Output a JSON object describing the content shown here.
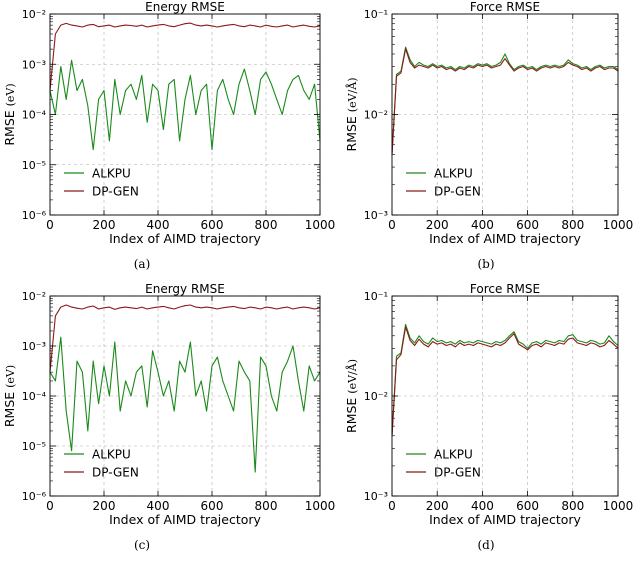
{
  "colors": {
    "alkpu": "#1a8a1a",
    "dpgen": "#8b1a1a",
    "grid": "#b0b0b0",
    "axis": "#000000"
  },
  "chart_data": [
    {
      "type": "line",
      "panel_label": "(a)",
      "title": "Energy RMSE",
      "xlabel": "Index of AIMD trajectory",
      "ylabel": "RMSE",
      "ylabel_unit": "(eV)",
      "log_y": true,
      "xlim": [
        0,
        1000
      ],
      "ylim": [
        1e-06,
        0.01
      ],
      "xticks": [
        0,
        200,
        400,
        600,
        800,
        1000
      ],
      "yticks": [
        {
          "v": 1e-06,
          "label": "10⁻⁶"
        },
        {
          "v": 1e-05,
          "label": "10⁻⁵"
        },
        {
          "v": 0.0001,
          "label": "10⁻⁴"
        },
        {
          "v": 0.001,
          "label": "10⁻³"
        },
        {
          "v": 0.01,
          "label": "10⁻²"
        }
      ],
      "grid": true,
      "legend": "bottom-left",
      "x": [
        0,
        20,
        40,
        60,
        80,
        100,
        120,
        140,
        160,
        180,
        200,
        220,
        240,
        260,
        280,
        300,
        320,
        340,
        360,
        380,
        400,
        420,
        440,
        460,
        480,
        500,
        520,
        540,
        560,
        580,
        600,
        620,
        640,
        660,
        680,
        700,
        720,
        740,
        760,
        780,
        800,
        820,
        840,
        860,
        880,
        900,
        920,
        940,
        960,
        980,
        1000
      ],
      "series": [
        {
          "name": "ALKPU",
          "color_key": "alkpu",
          "values": [
            0.0003,
            0.0001,
            0.0009,
            0.0002,
            0.0012,
            0.0003,
            0.0005,
            0.00015,
            2e-05,
            0.0002,
            0.0003,
            3e-05,
            0.0005,
            0.0001,
            0.0003,
            0.0004,
            0.0002,
            0.0006,
            7e-05,
            0.0004,
            0.0003,
            5e-05,
            0.0004,
            0.0005,
            3e-05,
            0.0002,
            0.0006,
            0.0001,
            0.0003,
            0.0004,
            2e-05,
            0.0003,
            0.0005,
            0.0002,
            0.0001,
            0.0004,
            0.0008,
            0.0003,
            0.0001,
            0.0005,
            0.0007,
            0.0004,
            0.0002,
            0.0001,
            0.0003,
            0.0005,
            0.0006,
            0.0003,
            0.0002,
            0.0004,
            3e-05
          ]
        },
        {
          "name": "DP-GEN",
          "color_key": "dpgen",
          "values": [
            0.0003,
            0.004,
            0.006,
            0.0065,
            0.006,
            0.0058,
            0.0055,
            0.006,
            0.0062,
            0.0056,
            0.0058,
            0.006,
            0.0055,
            0.0058,
            0.006,
            0.0059,
            0.0057,
            0.006,
            0.0055,
            0.0058,
            0.006,
            0.0062,
            0.0058,
            0.0056,
            0.006,
            0.0064,
            0.0066,
            0.006,
            0.0058,
            0.006,
            0.0058,
            0.0055,
            0.0058,
            0.006,
            0.0062,
            0.0058,
            0.0056,
            0.006,
            0.0058,
            0.0055,
            0.006,
            0.0057,
            0.0055,
            0.0058,
            0.006,
            0.0055,
            0.0058,
            0.006,
            0.0057,
            0.0055,
            0.0058
          ]
        }
      ]
    },
    {
      "type": "line",
      "panel_label": "(b)",
      "title": "Force RMSE",
      "xlabel": "Index of AIMD trajectory",
      "ylabel": "RMSE",
      "ylabel_unit": "(eV/Å)",
      "log_y": true,
      "xlim": [
        0,
        1000
      ],
      "ylim": [
        0.001,
        0.1
      ],
      "xticks": [
        0,
        200,
        400,
        600,
        800,
        1000
      ],
      "yticks": [
        {
          "v": 0.001,
          "label": "10⁻³"
        },
        {
          "v": 0.01,
          "label": "10⁻²"
        },
        {
          "v": 0.1,
          "label": "10⁻¹"
        }
      ],
      "grid": true,
      "legend": "bottom-left",
      "x": [
        0,
        20,
        40,
        60,
        80,
        100,
        120,
        140,
        160,
        180,
        200,
        220,
        240,
        260,
        280,
        300,
        320,
        340,
        360,
        380,
        400,
        420,
        440,
        460,
        480,
        500,
        520,
        540,
        560,
        580,
        600,
        620,
        640,
        660,
        680,
        700,
        720,
        740,
        760,
        780,
        800,
        820,
        840,
        860,
        880,
        900,
        920,
        940,
        960,
        980,
        1000
      ],
      "series": [
        {
          "name": "ALKPU",
          "color_key": "alkpu",
          "values": [
            0.004,
            0.025,
            0.027,
            0.047,
            0.035,
            0.03,
            0.033,
            0.031,
            0.03,
            0.032,
            0.03,
            0.031,
            0.029,
            0.03,
            0.028,
            0.03,
            0.029,
            0.031,
            0.03,
            0.032,
            0.031,
            0.032,
            0.03,
            0.031,
            0.033,
            0.04,
            0.032,
            0.028,
            0.03,
            0.031,
            0.029,
            0.03,
            0.028,
            0.03,
            0.031,
            0.03,
            0.031,
            0.03,
            0.031,
            0.035,
            0.032,
            0.031,
            0.029,
            0.03,
            0.028,
            0.03,
            0.031,
            0.029,
            0.03,
            0.03,
            0.028
          ]
        },
        {
          "name": "DP-GEN",
          "color_key": "dpgen",
          "values": [
            0.004,
            0.024,
            0.026,
            0.045,
            0.033,
            0.029,
            0.031,
            0.03,
            0.029,
            0.031,
            0.029,
            0.03,
            0.028,
            0.029,
            0.027,
            0.029,
            0.028,
            0.03,
            0.029,
            0.031,
            0.03,
            0.031,
            0.029,
            0.03,
            0.031,
            0.036,
            0.031,
            0.027,
            0.029,
            0.03,
            0.028,
            0.029,
            0.027,
            0.029,
            0.03,
            0.029,
            0.03,
            0.029,
            0.03,
            0.033,
            0.031,
            0.03,
            0.028,
            0.029,
            0.027,
            0.029,
            0.03,
            0.028,
            0.029,
            0.029,
            0.027
          ]
        }
      ]
    },
    {
      "type": "line",
      "panel_label": "(c)",
      "title": "Energy RMSE",
      "xlabel": "Index of AIMD trajectory",
      "ylabel": "RMSE",
      "ylabel_unit": "(eV)",
      "log_y": true,
      "xlim": [
        0,
        1000
      ],
      "ylim": [
        1e-06,
        0.01
      ],
      "xticks": [
        0,
        200,
        400,
        600,
        800,
        1000
      ],
      "yticks": [
        {
          "v": 1e-06,
          "label": "10⁻⁶"
        },
        {
          "v": 1e-05,
          "label": "10⁻⁵"
        },
        {
          "v": 0.0001,
          "label": "10⁻⁴"
        },
        {
          "v": 0.001,
          "label": "10⁻³"
        },
        {
          "v": 0.01,
          "label": "10⁻²"
        }
      ],
      "grid": true,
      "legend": "bottom-left",
      "x": [
        0,
        20,
        40,
        60,
        80,
        100,
        120,
        140,
        160,
        180,
        200,
        220,
        240,
        260,
        280,
        300,
        320,
        340,
        360,
        380,
        400,
        420,
        440,
        460,
        480,
        500,
        520,
        540,
        560,
        580,
        600,
        620,
        640,
        660,
        680,
        700,
        720,
        740,
        760,
        780,
        800,
        820,
        840,
        860,
        880,
        900,
        920,
        940,
        960,
        980,
        1000
      ],
      "series": [
        {
          "name": "ALKPU",
          "color_key": "alkpu",
          "values": [
            0.0003,
            0.0002,
            0.0015,
            5e-05,
            8e-06,
            0.0005,
            0.0003,
            2e-05,
            0.0005,
            7e-05,
            0.0004,
            0.0001,
            0.0012,
            5e-05,
            0.0002,
            0.0001,
            0.0003,
            0.0004,
            6e-05,
            0.0008,
            0.0003,
            0.0001,
            0.0002,
            5e-05,
            0.0005,
            0.0003,
            0.0012,
            0.0001,
            0.0002,
            5e-05,
            0.0004,
            0.0006,
            0.0002,
            0.0001,
            5e-05,
            0.0005,
            0.0003,
            0.0002,
            3e-06,
            0.0006,
            0.0004,
            0.0001,
            5e-05,
            0.0003,
            0.0005,
            0.001,
            0.0002,
            5e-05,
            0.0004,
            0.0002,
            0.0003
          ]
        },
        {
          "name": "DP-GEN",
          "color_key": "dpgen",
          "values": [
            0.0003,
            0.004,
            0.006,
            0.0066,
            0.006,
            0.0057,
            0.0055,
            0.006,
            0.0063,
            0.0055,
            0.0058,
            0.006,
            0.0054,
            0.0058,
            0.006,
            0.0058,
            0.0056,
            0.006,
            0.0055,
            0.0058,
            0.006,
            0.0062,
            0.0058,
            0.0055,
            0.006,
            0.0064,
            0.0066,
            0.006,
            0.0058,
            0.006,
            0.0058,
            0.0055,
            0.0058,
            0.006,
            0.0062,
            0.0058,
            0.0056,
            0.006,
            0.0058,
            0.0055,
            0.006,
            0.0058,
            0.0055,
            0.0058,
            0.006,
            0.0055,
            0.0058,
            0.006,
            0.0058,
            0.0055,
            0.0058
          ]
        }
      ]
    },
    {
      "type": "line",
      "panel_label": "(d)",
      "title": "Force RMSE",
      "xlabel": "Index of AIMD trajectory",
      "ylabel": "RMSE",
      "ylabel_unit": "(eV/Å)",
      "log_y": true,
      "xlim": [
        0,
        1000
      ],
      "ylim": [
        0.001,
        0.1
      ],
      "xticks": [
        0,
        200,
        400,
        600,
        800,
        1000
      ],
      "yticks": [
        {
          "v": 0.001,
          "label": "10⁻³"
        },
        {
          "v": 0.01,
          "label": "10⁻²"
        },
        {
          "v": 0.1,
          "label": "10⁻¹"
        }
      ],
      "grid": true,
      "legend": "bottom-left",
      "x": [
        0,
        20,
        40,
        60,
        80,
        100,
        120,
        140,
        160,
        180,
        200,
        220,
        240,
        260,
        280,
        300,
        320,
        340,
        360,
        380,
        400,
        420,
        440,
        460,
        480,
        500,
        520,
        540,
        560,
        580,
        600,
        620,
        640,
        660,
        680,
        700,
        720,
        740,
        760,
        780,
        800,
        820,
        840,
        860,
        880,
        900,
        920,
        940,
        960,
        980,
        1000
      ],
      "series": [
        {
          "name": "ALKPU",
          "color_key": "alkpu",
          "values": [
            0.004,
            0.025,
            0.027,
            0.052,
            0.038,
            0.034,
            0.04,
            0.035,
            0.033,
            0.038,
            0.035,
            0.036,
            0.034,
            0.035,
            0.033,
            0.036,
            0.034,
            0.035,
            0.034,
            0.036,
            0.035,
            0.034,
            0.033,
            0.035,
            0.034,
            0.036,
            0.04,
            0.044,
            0.035,
            0.033,
            0.03,
            0.034,
            0.035,
            0.033,
            0.036,
            0.035,
            0.034,
            0.036,
            0.035,
            0.04,
            0.041,
            0.036,
            0.035,
            0.034,
            0.036,
            0.035,
            0.033,
            0.034,
            0.04,
            0.035,
            0.032
          ]
        },
        {
          "name": "DP-GEN",
          "color_key": "dpgen",
          "values": [
            0.004,
            0.023,
            0.026,
            0.049,
            0.036,
            0.032,
            0.037,
            0.033,
            0.031,
            0.035,
            0.033,
            0.034,
            0.032,
            0.033,
            0.031,
            0.034,
            0.032,
            0.033,
            0.032,
            0.034,
            0.033,
            0.032,
            0.031,
            0.033,
            0.032,
            0.034,
            0.038,
            0.042,
            0.033,
            0.031,
            0.029,
            0.032,
            0.033,
            0.031,
            0.034,
            0.033,
            0.032,
            0.034,
            0.033,
            0.037,
            0.038,
            0.034,
            0.033,
            0.032,
            0.034,
            0.033,
            0.031,
            0.032,
            0.036,
            0.033,
            0.03
          ]
        }
      ]
    }
  ]
}
